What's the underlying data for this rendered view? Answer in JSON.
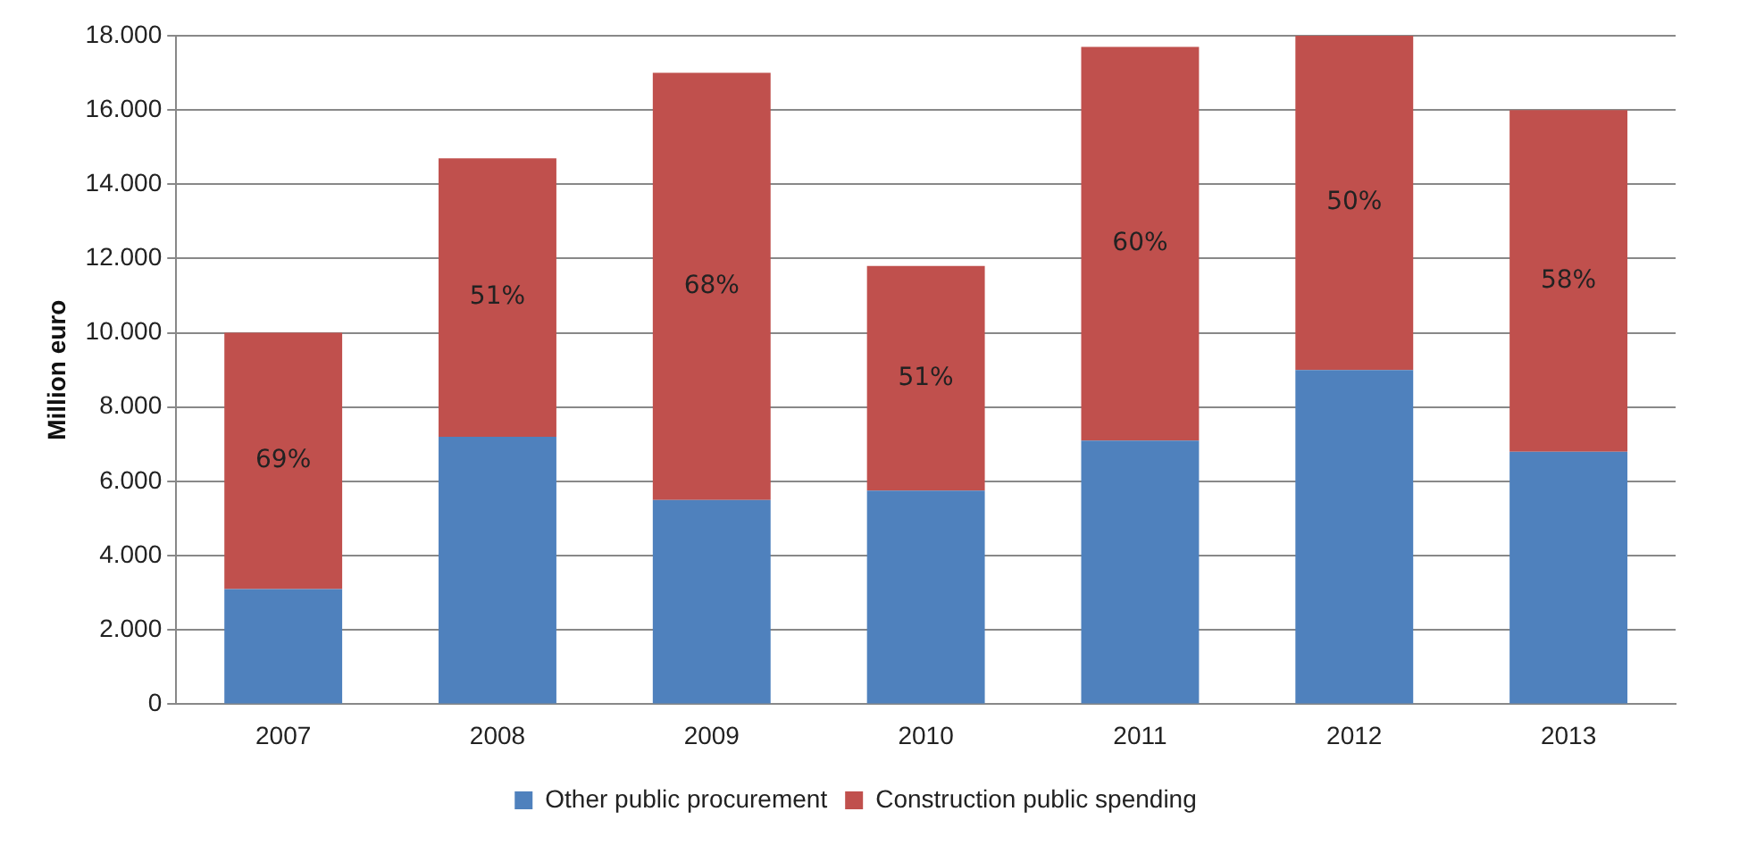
{
  "chart_data": {
    "type": "bar",
    "stacked": true,
    "ylabel": "Million euro",
    "categories": [
      "2007",
      "2008",
      "2009",
      "2010",
      "2011",
      "2012",
      "2013"
    ],
    "series": [
      {
        "name": "Other public procurement",
        "color": "#4f81bd",
        "values": [
          3100,
          7200,
          5500,
          5750,
          7100,
          9000,
          6800
        ]
      },
      {
        "name": "Construction public spending",
        "color": "#c0504d",
        "values": [
          6900,
          7500,
          11500,
          6050,
          10600,
          9000,
          9200
        ]
      }
    ],
    "ylim": [
      0,
      18000
    ],
    "yticks": [
      {
        "value": 0,
        "label": "0"
      },
      {
        "value": 2000,
        "label": "2.000"
      },
      {
        "value": 4000,
        "label": "4.000"
      },
      {
        "value": 6000,
        "label": "6.000"
      },
      {
        "value": 8000,
        "label": "8.000"
      },
      {
        "value": 10000,
        "label": "10.000"
      },
      {
        "value": 12000,
        "label": "12.000"
      },
      {
        "value": 14000,
        "label": "14.000"
      },
      {
        "value": 16000,
        "label": "16.000"
      },
      {
        "value": 18000,
        "label": "18.000"
      }
    ],
    "grid": "y",
    "legend": "bottom",
    "annotations": [
      "69%",
      "51%",
      "68%",
      "51%",
      "60%",
      "50%",
      "58%"
    ]
  }
}
